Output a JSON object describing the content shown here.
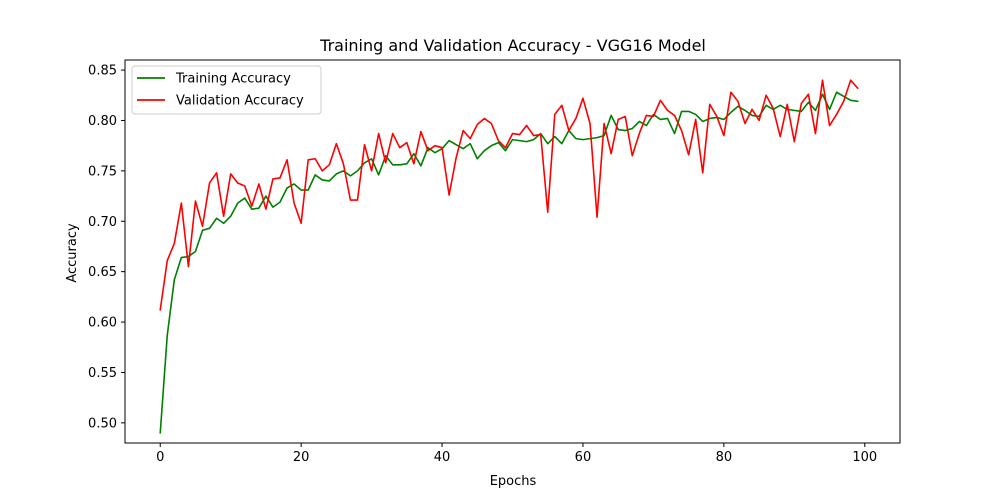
{
  "chart_data": {
    "type": "line",
    "title": "Training and Validation Accuracy - VGG16 Model",
    "xlabel": "Epochs",
    "ylabel": "Accuracy",
    "xlim": [
      -5,
      105
    ],
    "ylim": [
      0.48,
      0.86
    ],
    "xticks": [
      0,
      20,
      40,
      60,
      80,
      100
    ],
    "xtick_labels": [
      "0",
      "20",
      "40",
      "60",
      "80",
      "100"
    ],
    "yticks": [
      0.5,
      0.55,
      0.6,
      0.65,
      0.7,
      0.75,
      0.8,
      0.85
    ],
    "ytick_labels": [
      "0.50",
      "0.55",
      "0.60",
      "0.65",
      "0.70",
      "0.75",
      "0.80",
      "0.85"
    ],
    "grid": false,
    "legend_position": "top-left",
    "series": [
      {
        "name": "Training Accuracy",
        "color": "#008000",
        "x": [
          0,
          1,
          2,
          3,
          4,
          5,
          6,
          7,
          8,
          9,
          10,
          11,
          12,
          13,
          14,
          15,
          16,
          17,
          18,
          19,
          20,
          21,
          22,
          23,
          24,
          25,
          26,
          27,
          28,
          29,
          30,
          31,
          32,
          33,
          34,
          35,
          36,
          37,
          38,
          39,
          40,
          41,
          42,
          43,
          44,
          45,
          46,
          47,
          48,
          49,
          50,
          51,
          52,
          53,
          54,
          55,
          56,
          57,
          58,
          59,
          60,
          61,
          62,
          63,
          64,
          65,
          66,
          67,
          68,
          69,
          70,
          71,
          72,
          73,
          74,
          75,
          76,
          77,
          78,
          79,
          80,
          81,
          82,
          83,
          84,
          85,
          86,
          87,
          88,
          89,
          90,
          91,
          92,
          93,
          94,
          95,
          96,
          97,
          98,
          99
        ],
        "values": [
          0.49,
          0.587,
          0.642,
          0.664,
          0.665,
          0.67,
          0.691,
          0.693,
          0.703,
          0.698,
          0.705,
          0.718,
          0.723,
          0.712,
          0.713,
          0.725,
          0.714,
          0.719,
          0.733,
          0.737,
          0.731,
          0.731,
          0.746,
          0.741,
          0.74,
          0.747,
          0.75,
          0.745,
          0.75,
          0.758,
          0.762,
          0.746,
          0.765,
          0.756,
          0.756,
          0.757,
          0.767,
          0.755,
          0.773,
          0.768,
          0.772,
          0.78,
          0.776,
          0.772,
          0.777,
          0.762,
          0.77,
          0.775,
          0.778,
          0.77,
          0.781,
          0.78,
          0.779,
          0.781,
          0.787,
          0.777,
          0.784,
          0.777,
          0.79,
          0.782,
          0.781,
          0.782,
          0.783,
          0.785,
          0.805,
          0.791,
          0.79,
          0.792,
          0.799,
          0.795,
          0.806,
          0.801,
          0.802,
          0.787,
          0.809,
          0.809,
          0.806,
          0.799,
          0.802,
          0.803,
          0.801,
          0.808,
          0.814,
          0.81,
          0.805,
          0.804,
          0.815,
          0.811,
          0.815,
          0.811,
          0.81,
          0.809,
          0.818,
          0.81,
          0.826,
          0.811,
          0.828,
          0.824,
          0.82,
          0.819
        ]
      },
      {
        "name": "Validation Accuracy",
        "color": "#ff0000",
        "x": [
          0,
          1,
          2,
          3,
          4,
          5,
          6,
          7,
          8,
          9,
          10,
          11,
          12,
          13,
          14,
          15,
          16,
          17,
          18,
          19,
          20,
          21,
          22,
          23,
          24,
          25,
          26,
          27,
          28,
          29,
          30,
          31,
          32,
          33,
          34,
          35,
          36,
          37,
          38,
          39,
          40,
          41,
          42,
          43,
          44,
          45,
          46,
          47,
          48,
          49,
          50,
          51,
          52,
          53,
          54,
          55,
          56,
          57,
          58,
          59,
          60,
          61,
          62,
          63,
          64,
          65,
          66,
          67,
          68,
          69,
          70,
          71,
          72,
          73,
          74,
          75,
          76,
          77,
          78,
          79,
          80,
          81,
          82,
          83,
          84,
          85,
          86,
          87,
          88,
          89,
          90,
          91,
          92,
          93,
          94,
          95,
          96,
          97,
          98,
          99
        ],
        "values": [
          0.612,
          0.661,
          0.678,
          0.718,
          0.655,
          0.72,
          0.695,
          0.738,
          0.748,
          0.705,
          0.747,
          0.738,
          0.735,
          0.715,
          0.737,
          0.712,
          0.742,
          0.743,
          0.761,
          0.718,
          0.698,
          0.761,
          0.762,
          0.75,
          0.756,
          0.777,
          0.757,
          0.721,
          0.721,
          0.776,
          0.75,
          0.787,
          0.758,
          0.787,
          0.773,
          0.778,
          0.757,
          0.789,
          0.77,
          0.775,
          0.773,
          0.726,
          0.763,
          0.79,
          0.782,
          0.796,
          0.802,
          0.797,
          0.78,
          0.773,
          0.787,
          0.786,
          0.795,
          0.785,
          0.786,
          0.709,
          0.806,
          0.815,
          0.79,
          0.802,
          0.822,
          0.797,
          0.704,
          0.797,
          0.767,
          0.801,
          0.804,
          0.765,
          0.787,
          0.805,
          0.804,
          0.82,
          0.81,
          0.805,
          0.79,
          0.766,
          0.801,
          0.748,
          0.816,
          0.804,
          0.785,
          0.828,
          0.819,
          0.797,
          0.811,
          0.8,
          0.825,
          0.812,
          0.784,
          0.816,
          0.779,
          0.817,
          0.826,
          0.787,
          0.84,
          0.795,
          0.806,
          0.819,
          0.84,
          0.832
        ]
      }
    ]
  }
}
